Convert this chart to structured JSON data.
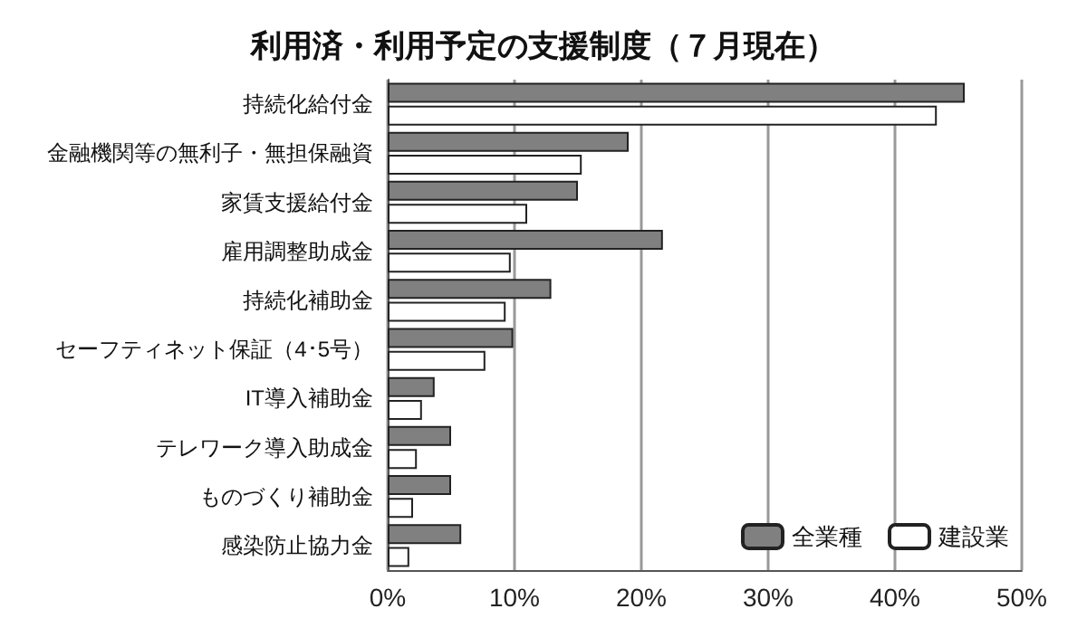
{
  "chart_data": {
    "type": "bar",
    "orientation": "horizontal",
    "title": "利用済・利用予定の支援制度（７月現在）",
    "categories": [
      "持続化給付金",
      "金融機関等の無利子・無担保融資",
      "家賃支援給付金",
      "雇用調整助成金",
      "持続化補助金",
      "セーフティネット保証（4･5号）",
      "IT導入補助金",
      "テレワーク導入助成金",
      "ものづくり補助金",
      "感染防止協力金"
    ],
    "series": [
      {
        "name": "全業種",
        "color": "#808080",
        "values": [
          45.5,
          19.0,
          15.0,
          21.7,
          12.9,
          9.9,
          3.7,
          5.0,
          5.0,
          5.8
        ]
      },
      {
        "name": "建設業",
        "color": "#ffffff",
        "values": [
          43.3,
          15.3,
          11.0,
          9.7,
          9.3,
          7.7,
          2.7,
          2.3,
          2.0,
          1.7
        ]
      }
    ],
    "xlim": [
      0,
      50
    ],
    "xticks": [
      {
        "value": 0,
        "label": "0%"
      },
      {
        "value": 10,
        "label": "10%"
      },
      {
        "value": 20,
        "label": "20%"
      },
      {
        "value": 30,
        "label": "30%"
      },
      {
        "value": 40,
        "label": "40%"
      },
      {
        "value": 50,
        "label": "50%"
      }
    ],
    "grid": "x",
    "legend": "bottom right"
  }
}
